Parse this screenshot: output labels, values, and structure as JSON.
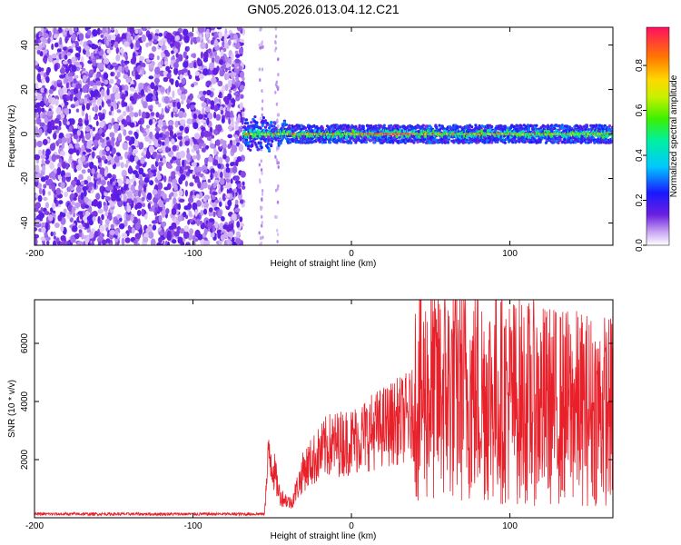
{
  "title": "GN05.2026.013.04.12.C21",
  "chart_data": [
    {
      "type": "heatmap",
      "xlabel": "Height of straight line (km)",
      "ylabel": "Frequency (Hz)",
      "xlim": [
        -200,
        165
      ],
      "ylim": [
        -50,
        48
      ],
      "xticks": [
        -200,
        -100,
        0,
        100
      ],
      "yticks": [
        -40,
        -20,
        0,
        20,
        40
      ],
      "colorbar": {
        "label": "Normalized spectral amplitude",
        "range": [
          0,
          0.97
        ],
        "ticks": [
          0.0,
          0.2,
          0.4,
          0.6,
          0.8
        ]
      },
      "regions": [
        {
          "x": [
            -200,
            -68
          ],
          "note": "noise"
        },
        {
          "x": [
            -68,
            165
          ],
          "center_freq": 0,
          "note": "signal"
        }
      ]
    },
    {
      "type": "line",
      "xlabel": "Height of straight line (km)",
      "ylabel": "SNR (10 * v/v)",
      "xlim": [
        -200,
        165
      ],
      "ylim": [
        0,
        7500
      ],
      "xticks": [
        -200,
        -100,
        0,
        100
      ],
      "yticks": [
        2000,
        4000,
        6000
      ],
      "color": "#e8202a",
      "envelope": [
        {
          "x": -200,
          "y": 150
        },
        {
          "x": -55,
          "y": 150
        },
        {
          "x": -52,
          "y": 2800
        },
        {
          "x": -45,
          "y": 900
        },
        {
          "x": -38,
          "y": 600
        },
        {
          "x": -30,
          "y": 2000
        },
        {
          "x": -15,
          "y": 3000
        },
        {
          "x": 0,
          "y": 3200
        },
        {
          "x": 20,
          "y": 3800
        },
        {
          "x": 40,
          "y": 4300
        },
        {
          "x": 60,
          "y": 4500
        },
        {
          "x": 80,
          "y": 4400
        },
        {
          "x": 100,
          "y": 4200
        },
        {
          "x": 120,
          "y": 4000
        },
        {
          "x": 140,
          "y": 3900
        },
        {
          "x": 165,
          "y": 3800
        }
      ]
    }
  ]
}
